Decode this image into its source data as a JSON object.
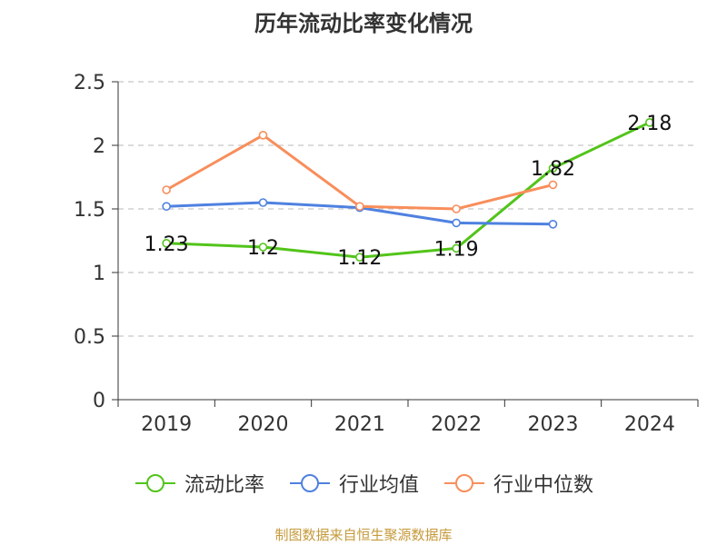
{
  "title": "历年流动比率变化情况",
  "source": "制图数据来自恒生聚源数据库",
  "chart_data": {
    "type": "line",
    "title": "历年流动比率变化情况",
    "xlabel": "",
    "ylabel": "",
    "categories": [
      "2019",
      "2020",
      "2021",
      "2022",
      "2023",
      "2024"
    ],
    "ylim": [
      0,
      2.5
    ],
    "yticks": [
      0,
      0.5,
      1,
      1.5,
      2,
      2.5
    ],
    "ytick_labels": [
      "0",
      "0.5",
      "1",
      "1.5",
      "2",
      "2.5"
    ],
    "grid": "horizontal dashed",
    "legend_position": "bottom",
    "series": [
      {
        "name": "流动比率",
        "color": "#52c41a",
        "values": [
          1.23,
          1.2,
          1.12,
          1.19,
          1.82,
          2.18
        ],
        "labels": [
          "1.23",
          "1.2",
          "1.12",
          "1.19",
          "1.82",
          "2.18"
        ]
      },
      {
        "name": "行业均值",
        "color": "#4f81e0",
        "values": [
          1.52,
          1.55,
          1.51,
          1.39,
          1.38,
          null
        ]
      },
      {
        "name": "行业中位数",
        "color": "#f88e5b",
        "values": [
          1.65,
          2.08,
          1.52,
          1.5,
          1.69,
          null
        ]
      }
    ]
  }
}
